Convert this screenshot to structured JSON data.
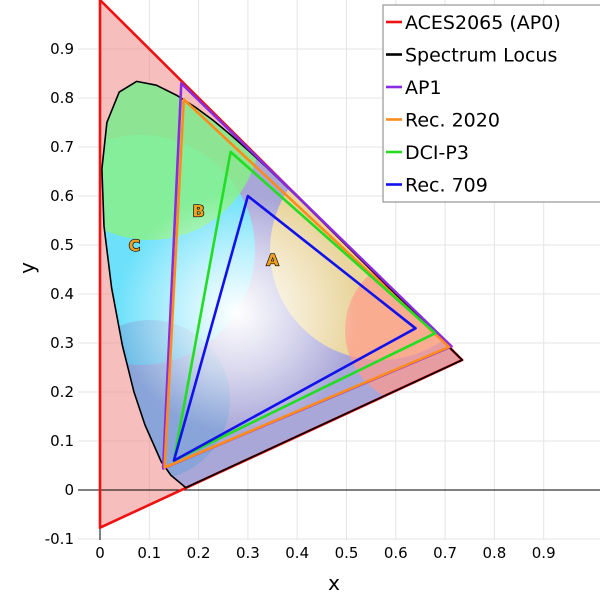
{
  "chart_data": {
    "type": "line",
    "xlabel": "x",
    "ylabel": "y",
    "xlim": [
      -0.05,
      1.0
    ],
    "ylim": [
      -0.1,
      1.0
    ],
    "x_ticks": [
      "0",
      "0.1",
      "0.2",
      "0.3",
      "0.4",
      "0.5",
      "0.6",
      "0.7",
      "0.8",
      "0.9"
    ],
    "y_ticks": [
      "-0.1",
      "0",
      "0.1",
      "0.2",
      "0.3",
      "0.4",
      "0.5",
      "0.6",
      "0.7",
      "0.8",
      "0.9"
    ],
    "grid": true,
    "legend_position": "top-right",
    "series": [
      {
        "name": "ACES2065 (AP0)",
        "color": "#ee1111",
        "closed": true,
        "points": [
          [
            0.7347,
            0.2653
          ],
          [
            0.0,
            1.0
          ],
          [
            0.0001,
            -0.077
          ]
        ]
      },
      {
        "name": "Spectrum Locus",
        "color": "#000000",
        "closed": true,
        "points": [
          [
            0.1741,
            0.005
          ],
          [
            0.144,
            0.0297
          ],
          [
            0.1241,
            0.0578
          ],
          [
            0.0913,
            0.1327
          ],
          [
            0.0687,
            0.2007
          ],
          [
            0.0454,
            0.295
          ],
          [
            0.0235,
            0.4127
          ],
          [
            0.0082,
            0.5384
          ],
          [
            0.0039,
            0.6548
          ],
          [
            0.0139,
            0.7502
          ],
          [
            0.0389,
            0.812
          ],
          [
            0.0743,
            0.8338
          ],
          [
            0.1142,
            0.8262
          ],
          [
            0.1547,
            0.8059
          ],
          [
            0.1929,
            0.7816
          ],
          [
            0.2296,
            0.7543
          ],
          [
            0.2658,
            0.7243
          ],
          [
            0.3016,
            0.6923
          ],
          [
            0.3373,
            0.6589
          ],
          [
            0.3731,
            0.6245
          ],
          [
            0.4087,
            0.5896
          ],
          [
            0.4441,
            0.5547
          ],
          [
            0.4788,
            0.5202
          ],
          [
            0.5125,
            0.4866
          ],
          [
            0.5448,
            0.4544
          ],
          [
            0.5752,
            0.4242
          ],
          [
            0.6029,
            0.3965
          ],
          [
            0.627,
            0.3725
          ],
          [
            0.6482,
            0.3514
          ],
          [
            0.6658,
            0.334
          ],
          [
            0.6915,
            0.3083
          ],
          [
            0.7347,
            0.2653
          ]
        ]
      },
      {
        "name": "AP1",
        "color": "#8a2be2",
        "closed": true,
        "points": [
          [
            0.713,
            0.293
          ],
          [
            0.165,
            0.83
          ],
          [
            0.128,
            0.044
          ]
        ]
      },
      {
        "name": "Rec. 2020",
        "color": "#ff8c1a",
        "closed": true,
        "points": [
          [
            0.708,
            0.292
          ],
          [
            0.17,
            0.797
          ],
          [
            0.131,
            0.046
          ]
        ]
      },
      {
        "name": "DCI-P3",
        "color": "#22dd22",
        "closed": true,
        "points": [
          [
            0.68,
            0.32
          ],
          [
            0.265,
            0.69
          ],
          [
            0.15,
            0.06
          ]
        ]
      },
      {
        "name": "Rec. 709",
        "color": "#1111ee",
        "closed": true,
        "points": [
          [
            0.64,
            0.33
          ],
          [
            0.3,
            0.6
          ],
          [
            0.15,
            0.06
          ]
        ]
      }
    ],
    "annotations": [
      {
        "text": "A",
        "x": 0.35,
        "y": 0.47
      },
      {
        "text": "B",
        "x": 0.2,
        "y": 0.57
      },
      {
        "text": "C",
        "x": 0.07,
        "y": 0.5
      }
    ]
  }
}
